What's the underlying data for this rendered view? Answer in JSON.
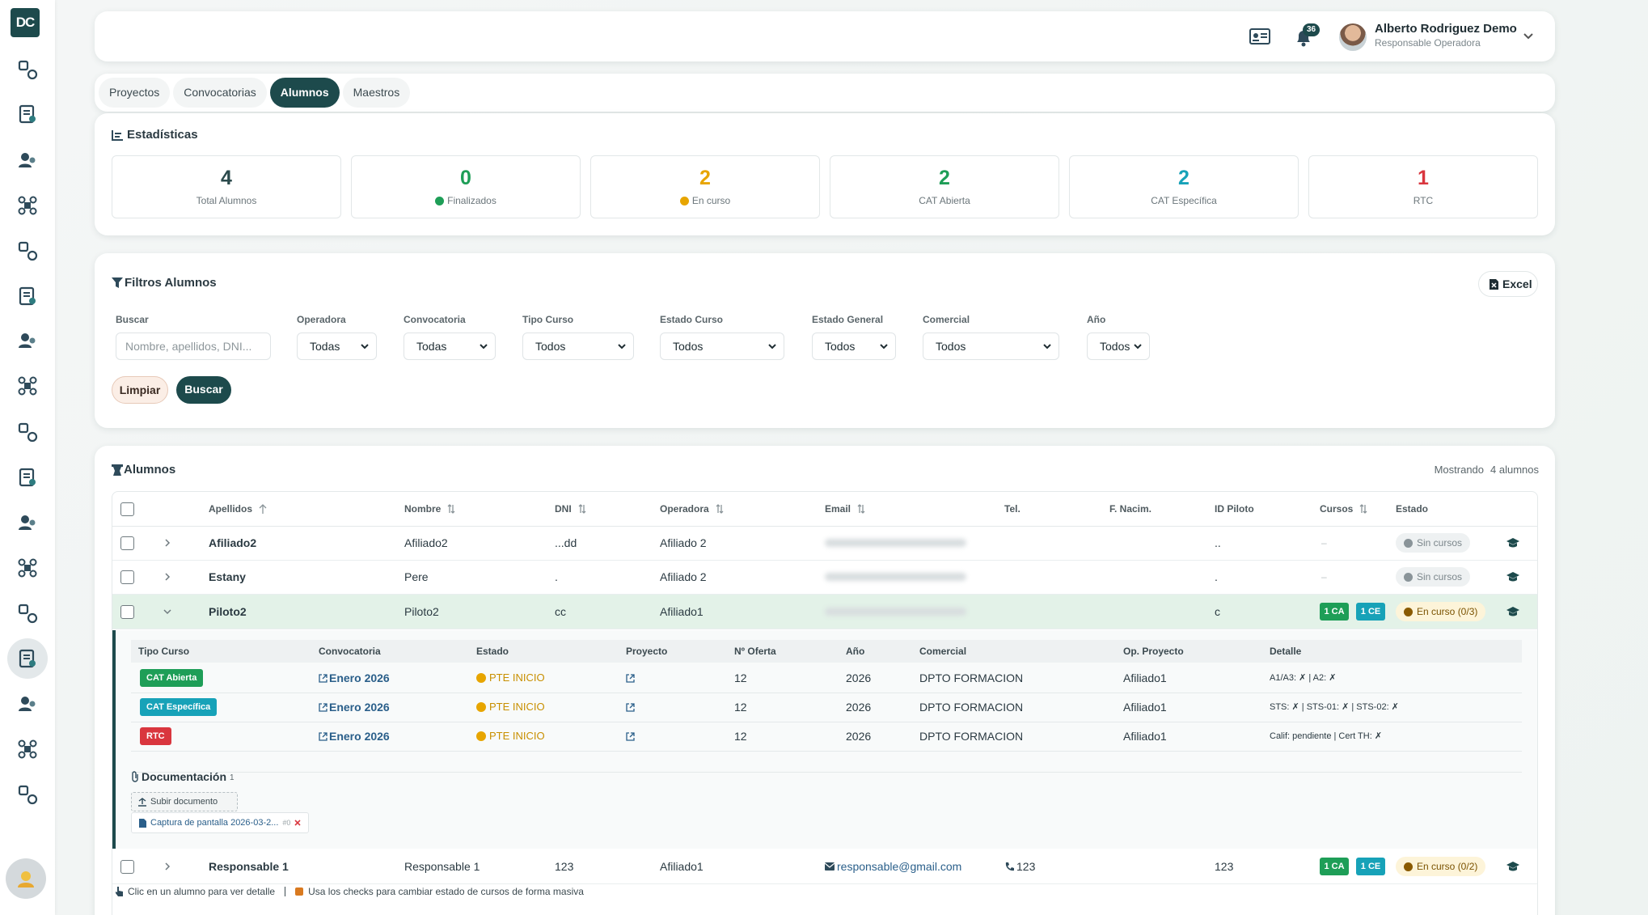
{
  "sidebar": {
    "logo": "DC"
  },
  "header": {
    "notifications": "36",
    "user_name": "Alberto Rodriguez Demo",
    "user_role": "Responsable Operadora"
  },
  "tabs": {
    "items": [
      "Proyectos",
      "Convocatorias",
      "Alumnos",
      "Maestros"
    ],
    "active": 2
  },
  "stats": {
    "title": "Estadísticas",
    "items": [
      {
        "value": 4,
        "label": "Total Alumnos",
        "color": "#2b4a4c"
      },
      {
        "value": 0,
        "label": "Finalizados",
        "color": "#1e9e57",
        "dot_color": "#1e9e57"
      },
      {
        "value": 2,
        "label": "En curso",
        "color": "#e7a500",
        "dot_color": "#e7a500"
      },
      {
        "value": 2,
        "label": "CAT Abierta",
        "color": "#1e9e57"
      },
      {
        "value": 2,
        "label": "CAT Específica",
        "color": "#17a2b8"
      },
      {
        "value": 1,
        "label": "RTC",
        "color": "#d9363e"
      }
    ]
  },
  "filters": {
    "title": "Filtros Alumnos",
    "excel": "Excel",
    "fields": [
      {
        "label": "Buscar",
        "placeholder": "Nombre, apellidos, DNI..."
      },
      {
        "label": "Operadora",
        "value": "Todas"
      },
      {
        "label": "Convocatoria",
        "value": "Todas"
      },
      {
        "label": "Tipo Curso",
        "value": "Todos"
      },
      {
        "label": "Estado Curso",
        "value": "Todos"
      },
      {
        "label": "Estado General",
        "value": "Todos"
      },
      {
        "label": "Comercial",
        "value": "Todos"
      },
      {
        "label": "Año",
        "value": "Todos"
      }
    ],
    "clear": "Limpiar",
    "search": "Buscar"
  },
  "students": {
    "title": "Alumnos",
    "showing": "Mostrando",
    "count": "4 alumnos",
    "columns": [
      {
        "label": "Apellidos",
        "sorted": true
      },
      {
        "label": "Nombre",
        "sortable": true
      },
      {
        "label": "DNI",
        "sortable": true
      },
      {
        "label": "Operadora",
        "sortable": true
      },
      {
        "label": "Email",
        "sortable": true
      },
      {
        "label": "Tel."
      },
      {
        "label": "F. Nacim."
      },
      {
        "label": "ID Piloto"
      },
      {
        "label": "Cursos",
        "sortable": true
      },
      {
        "label": "Estado"
      }
    ],
    "rows": [
      {
        "apellidos": "Afiliado2",
        "nombre": "Afiliado2",
        "dni": "...dd",
        "operadora": "Afiliado 2",
        "email_blurred": true,
        "id_piloto": "..",
        "cursos": "–",
        "estado": {
          "text": "Sin cursos",
          "color": "#8a9499"
        }
      },
      {
        "apellidos": "Estany",
        "nombre": "Pere",
        "dni": ".",
        "operadora": "Afiliado 2",
        "email_blurred": true,
        "id_piloto": ".",
        "cursos": "–",
        "estado": {
          "text": "Sin cursos",
          "color": "#8a9499"
        }
      },
      {
        "apellidos": "Piloto2",
        "nombre": "Piloto2",
        "dni": "cc",
        "operadora": "Afiliado1",
        "email_blurred": true,
        "id_piloto": "c",
        "expanded": true,
        "cursos": [
          {
            "text": "1 CA",
            "color": "#1e9e57"
          },
          {
            "text": "1 CE",
            "color": "#17a2b8"
          }
        ],
        "estado": {
          "text": "En curso (0/3)",
          "color": "#e7a500"
        }
      },
      {
        "apellidos": "Responsable 1",
        "nombre": "Responsable 1",
        "dni": "123",
        "operadora": "Afiliado1",
        "email": "responsable@gmail.com",
        "tel": "123",
        "id_piloto": "123",
        "cursos": [
          {
            "text": "1 CA",
            "color": "#1e9e57"
          },
          {
            "text": "1 CE",
            "color": "#17a2b8"
          }
        ],
        "estado": {
          "text": "En curso (0/2)",
          "color": "#e7a500"
        }
      }
    ],
    "detail": {
      "columns": [
        "Tipo Curso",
        "Convocatoria",
        "Estado",
        "Proyecto",
        "Nº Oferta",
        "Año",
        "Comercial",
        "Op. Proyecto",
        "Detalle"
      ],
      "rows": [
        {
          "tipo": {
            "text": "CAT Abierta",
            "color": "#1e9e57"
          },
          "convocatoria": "Enero 2026",
          "estado": "PTE INICIO",
          "oferta": "12",
          "anio": "2026",
          "comercial": "DPTO FORMACION",
          "op_proyecto": "Afiliado1",
          "detalle": "A1/A3: ✗ | A2: ✗"
        },
        {
          "tipo": {
            "text": "CAT Específica",
            "color": "#17a2b8"
          },
          "convocatoria": "Enero 2026",
          "estado": "PTE INICIO",
          "oferta": "12",
          "anio": "2026",
          "comercial": "DPTO FORMACION",
          "op_proyecto": "Afiliado1",
          "detalle": "STS: ✗ | STS-01: ✗ | STS-02: ✗"
        },
        {
          "tipo": {
            "text": "RTC",
            "color": "#d9363e"
          },
          "convocatoria": "Enero 2026",
          "estado": "PTE INICIO",
          "oferta": "12",
          "anio": "2026",
          "comercial": "DPTO FORMACION",
          "op_proyecto": "Afiliado1",
          "detalle": "Calif: pendiente | Cert TH: ✗"
        }
      ],
      "documents_title": "Documentación",
      "documents_count": "1",
      "upload": "Subir documento",
      "file": "Captura de pantalla 2026-03-2...",
      "file_tag": "#0"
    },
    "hints": [
      "Clic en un alumno para ver detalle",
      "Usa los checks para cambiar estado de cursos de forma masiva"
    ]
  }
}
